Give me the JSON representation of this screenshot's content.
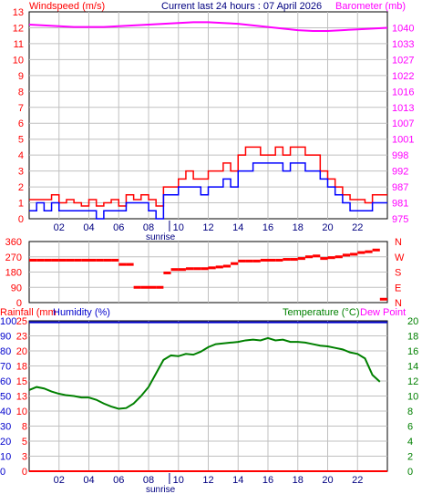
{
  "page": {
    "title": "Current last 24 hours : 07 April 2026"
  },
  "colors": {
    "wind": "#ff0000",
    "gust": "#ff0000",
    "wind_avg": "#0000ff",
    "barometer": "#ff00ff",
    "direction": "#ff0000",
    "rain": "#ff0000",
    "humidity": "#0000cc",
    "temperature": "#008000",
    "dewpoint": "#ff00ff",
    "axis": "#000000",
    "grid": "#c0c0c0"
  },
  "x_axis": {
    "ticks": [
      "02",
      "04",
      "06",
      "08",
      "10",
      "12",
      "14",
      "16",
      "18",
      "20",
      "22"
    ],
    "marker_label": "sunrise",
    "range_hours": [
      0,
      24
    ]
  },
  "panel1": {
    "left_label": "Windspeed (m/s)",
    "center_label": "Current last 24 hours : 07 April 2026",
    "right_label": "Barometer (mb)",
    "left_ticks": [
      "0",
      "1",
      "2",
      "3",
      "4",
      "5",
      "6",
      "7",
      "8",
      "9",
      "10",
      "11",
      "12",
      "13"
    ],
    "right_ticks": [
      "975",
      "981",
      "987",
      "992",
      "998",
      "1001",
      "1007",
      "1013",
      "1016",
      "1022",
      "1027",
      "1033",
      "1040"
    ]
  },
  "panel2": {
    "left_ticks": [
      "0",
      "90",
      "180",
      "270",
      "360"
    ],
    "right_ticks": [
      "N",
      "E",
      "S",
      "W",
      "N"
    ]
  },
  "panel3": {
    "label_rain": "Rainfall (mm",
    "label_humidity": "Humidity (%)",
    "label_temp": "Temperature (°C)",
    "label_dew": "Dew Point",
    "humidity_ticks": [
      "0",
      "10",
      "20",
      "30",
      "40",
      "50",
      "60",
      "70",
      "80",
      "90",
      "100"
    ],
    "rain_ticks": [
      "0",
      "3",
      "5",
      "8",
      "10",
      "13",
      "15",
      "18",
      "20",
      "23",
      "25"
    ],
    "temp_ticks": [
      "0",
      "2",
      "4",
      "6",
      "8",
      "10",
      "12",
      "14",
      "16",
      "18",
      "20"
    ]
  },
  "chart_data": [
    {
      "type": "line",
      "title": "Current last 24 hours : 07 April 2026",
      "xlabel": "",
      "ylabel": "Windspeed (m/s)",
      "ylabel_right": "Barometer (mb)",
      "ylim": [
        0,
        13
      ],
      "ylim_right_ticks": [
        975,
        981,
        987,
        992,
        998,
        1001,
        1007,
        1013,
        1016,
        1022,
        1027,
        1033,
        1040
      ],
      "series": [
        {
          "name": "Windspeed (m/s)",
          "x": [
            0,
            0.5,
            1,
            1.5,
            2,
            2.5,
            3,
            3.5,
            4,
            4.5,
            5,
            5.5,
            6,
            6.5,
            7,
            7.5,
            8,
            8.5,
            9,
            9.5,
            10,
            10.5,
            11,
            11.5,
            12,
            12.5,
            13,
            13.5,
            14,
            14.5,
            15,
            15.5,
            16,
            16.5,
            17,
            17.5,
            18,
            18.5,
            19,
            19.5,
            20,
            20.5,
            21,
            21.5,
            22,
            22.5,
            23,
            23.5
          ],
          "values": [
            0.5,
            1.0,
            0.5,
            1.0,
            0.5,
            0.5,
            0.5,
            0.5,
            0.5,
            0,
            0.5,
            0.5,
            0.5,
            1.0,
            1.0,
            1.0,
            0.5,
            0,
            1.5,
            1.5,
            2.0,
            2.0,
            2.0,
            1.5,
            2.0,
            2.0,
            2.5,
            2.0,
            3.0,
            3.0,
            3.5,
            3.5,
            3.5,
            3.5,
            3.0,
            3.5,
            3.5,
            3.0,
            3.0,
            2.5,
            2.0,
            1.5,
            1.0,
            0.5,
            0.5,
            0.5,
            1.0,
            1.0
          ]
        },
        {
          "name": "Gust",
          "x": [
            0,
            0.5,
            1,
            1.5,
            2,
            2.5,
            3,
            3.5,
            4,
            4.5,
            5,
            5.5,
            6,
            6.5,
            7,
            7.5,
            8,
            8.5,
            9,
            9.5,
            10,
            10.5,
            11,
            11.5,
            12,
            12.5,
            13,
            13.5,
            14,
            14.5,
            15,
            15.5,
            16,
            16.5,
            17,
            17.5,
            18,
            18.5,
            19,
            19.5,
            20,
            20.5,
            21,
            21.5,
            22,
            22.5,
            23,
            23.5
          ],
          "values": [
            1.2,
            1.2,
            1.2,
            1.5,
            1.0,
            1.2,
            1.0,
            0.8,
            1.2,
            0.8,
            1.0,
            1.2,
            0.8,
            1.5,
            1.2,
            1.5,
            1.2,
            0.8,
            2.0,
            2.0,
            2.5,
            3.0,
            2.5,
            2.5,
            3.0,
            3.0,
            3.5,
            3.0,
            4.0,
            4.5,
            4.5,
            4.0,
            4.0,
            4.5,
            4.0,
            4.5,
            4.5,
            4.0,
            4.0,
            3.0,
            2.5,
            2.0,
            1.5,
            1.2,
            1.2,
            1.0,
            1.5,
            1.5
          ]
        },
        {
          "name": "Barometer (mb)",
          "x": [
            0,
            1,
            2,
            3,
            4,
            5,
            6,
            7,
            8,
            9,
            10,
            11,
            12,
            13,
            14,
            15,
            16,
            17,
            18,
            19,
            20,
            21,
            22,
            23,
            24
          ],
          "values_plot": [
            12.2,
            12.15,
            12.1,
            12.05,
            12.05,
            12.05,
            12.1,
            12.15,
            12.2,
            12.25,
            12.3,
            12.35,
            12.35,
            12.3,
            12.25,
            12.15,
            12.05,
            11.95,
            11.85,
            11.8,
            11.8,
            11.85,
            11.9,
            11.95,
            12.0
          ]
        }
      ]
    },
    {
      "type": "scatter",
      "title": "",
      "xlabel": "",
      "ylabel": "",
      "ylim": [
        0,
        360
      ],
      "series": [
        {
          "name": "Wind direction",
          "x": [
            0,
            0.5,
            1,
            1.5,
            2,
            2.5,
            3,
            3.5,
            4,
            4.5,
            5,
            5.5,
            6,
            6.5,
            7,
            7.5,
            8,
            8.5,
            9,
            9.5,
            10,
            10.5,
            11,
            11.5,
            12,
            12.5,
            13,
            13.5,
            14,
            14.5,
            15,
            15.5,
            16,
            16.5,
            17,
            17.5,
            18,
            18.5,
            19,
            19.5,
            20,
            20.5,
            21,
            21.5,
            22,
            22.5,
            23,
            23.5
          ],
          "values": [
            250,
            250,
            250,
            250,
            250,
            250,
            250,
            250,
            250,
            250,
            250,
            250,
            225,
            225,
            90,
            90,
            90,
            90,
            175,
            195,
            195,
            200,
            200,
            200,
            205,
            210,
            215,
            230,
            245,
            245,
            245,
            250,
            250,
            250,
            255,
            255,
            260,
            270,
            275,
            260,
            265,
            270,
            280,
            285,
            295,
            300,
            310,
            20
          ]
        }
      ]
    },
    {
      "type": "line",
      "title": "",
      "xlabel": "",
      "ylabel": "Humidity (%)",
      "ylabel_right": "Temperature (°C)",
      "ylim": [
        0,
        100
      ],
      "ylim_right": [
        0,
        20
      ],
      "series": [
        {
          "name": "Temperature (°C)",
          "x": [
            0,
            0.5,
            1,
            1.5,
            2,
            2.5,
            3,
            3.5,
            4,
            4.5,
            5,
            5.5,
            6,
            6.5,
            7,
            7.5,
            8,
            8.5,
            9,
            9.5,
            10,
            10.5,
            11,
            11.5,
            12,
            12.5,
            13,
            13.5,
            14,
            14.5,
            15,
            15.5,
            16,
            16.5,
            17,
            17.5,
            18,
            18.5,
            19,
            19.5,
            20,
            20.5,
            21,
            21.5,
            22,
            22.5,
            23,
            23.5
          ],
          "values": [
            10.8,
            11.2,
            11.0,
            10.6,
            10.3,
            10.1,
            10.0,
            9.8,
            9.8,
            9.5,
            9.0,
            8.6,
            8.3,
            8.4,
            9.0,
            10.0,
            11.2,
            13.0,
            14.8,
            15.4,
            15.3,
            15.6,
            15.5,
            15.9,
            16.5,
            16.9,
            17.0,
            17.1,
            17.2,
            17.4,
            17.5,
            17.4,
            17.7,
            17.4,
            17.5,
            17.2,
            17.2,
            17.1,
            16.9,
            16.7,
            16.6,
            16.4,
            16.2,
            15.8,
            15.6,
            15.0,
            12.8,
            11.9
          ]
        },
        {
          "name": "Humidity (%)",
          "x": [
            0,
            24
          ],
          "values": [
            99,
            99
          ]
        },
        {
          "name": "Rainfall (mm",
          "x": [
            0,
            24
          ],
          "values": [
            0,
            0
          ]
        }
      ]
    }
  ]
}
